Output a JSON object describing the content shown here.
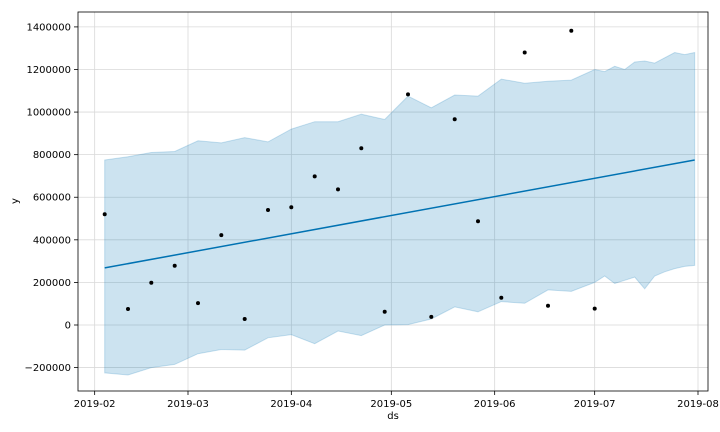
{
  "chart_data": {
    "type": "line",
    "title": "",
    "xlabel": "ds",
    "ylabel": "y",
    "grid": true,
    "x_ticks": [
      "2019-02",
      "2019-03",
      "2019-04",
      "2019-05",
      "2019-06",
      "2019-07",
      "2019-08"
    ],
    "y_ticks": [
      -200000,
      0,
      200000,
      400000,
      600000,
      800000,
      1000000,
      1200000,
      1400000
    ],
    "y_tick_labels": [
      "−200000",
      "0",
      "200000",
      "400000",
      "600000",
      "800000",
      "1000000",
      "1200000",
      "1400000"
    ],
    "xlim": [
      "2019-01-27",
      "2019-08-04"
    ],
    "ylim": [
      -310000,
      1470000
    ],
    "colors": {
      "forecast": "#0072B2",
      "band": "#0072B2",
      "points": "#000000"
    },
    "series": [
      {
        "kind": "observed",
        "x": [
          "2019-02-04",
          "2019-02-11",
          "2019-02-18",
          "2019-02-25",
          "2019-03-04",
          "2019-03-11",
          "2019-03-18",
          "2019-03-25",
          "2019-04-01",
          "2019-04-08",
          "2019-04-15",
          "2019-04-22",
          "2019-04-29",
          "2019-05-06",
          "2019-05-13",
          "2019-05-20",
          "2019-05-27",
          "2019-06-03",
          "2019-06-10",
          "2019-06-17",
          "2019-06-24",
          "2019-07-01"
        ],
        "y": [
          520000,
          75000,
          198000,
          278000,
          103000,
          422000,
          28000,
          540000,
          553000,
          698000,
          637000,
          830000,
          62000,
          1083000,
          38000,
          966000,
          487000,
          128000,
          1280000,
          90000,
          1382000,
          77000
        ]
      },
      {
        "kind": "trend",
        "x": [
          "2019-02-04",
          "2019-07-31"
        ],
        "y": [
          268000,
          775000
        ]
      },
      {
        "kind": "upper",
        "x": [
          "2019-02-04",
          "2019-02-11",
          "2019-02-18",
          "2019-02-25",
          "2019-03-04",
          "2019-03-11",
          "2019-03-18",
          "2019-03-25",
          "2019-04-01",
          "2019-04-08",
          "2019-04-15",
          "2019-04-22",
          "2019-04-29",
          "2019-05-06",
          "2019-05-13",
          "2019-05-20",
          "2019-05-27",
          "2019-06-03",
          "2019-06-10",
          "2019-06-17",
          "2019-06-24",
          "2019-07-01",
          "2019-07-04",
          "2019-07-07",
          "2019-07-10",
          "2019-07-13",
          "2019-07-16",
          "2019-07-19",
          "2019-07-22",
          "2019-07-25",
          "2019-07-28",
          "2019-07-31"
        ],
        "y": [
          775000,
          790000,
          810000,
          815000,
          865000,
          855000,
          880000,
          860000,
          920000,
          955000,
          955000,
          990000,
          965000,
          1075000,
          1020000,
          1080000,
          1075000,
          1155000,
          1135000,
          1145000,
          1150000,
          1200000,
          1190000,
          1215000,
          1200000,
          1235000,
          1240000,
          1230000,
          1255000,
          1280000,
          1270000,
          1280000
        ]
      },
      {
        "kind": "lower",
        "x": [
          "2019-02-04",
          "2019-02-11",
          "2019-02-18",
          "2019-02-25",
          "2019-03-04",
          "2019-03-11",
          "2019-03-18",
          "2019-03-25",
          "2019-04-01",
          "2019-04-08",
          "2019-04-15",
          "2019-04-22",
          "2019-04-29",
          "2019-05-06",
          "2019-05-13",
          "2019-05-20",
          "2019-05-27",
          "2019-06-03",
          "2019-06-10",
          "2019-06-17",
          "2019-06-24",
          "2019-07-01",
          "2019-07-04",
          "2019-07-07",
          "2019-07-10",
          "2019-07-13",
          "2019-07-16",
          "2019-07-19",
          "2019-07-22",
          "2019-07-25",
          "2019-07-28",
          "2019-07-31"
        ],
        "y": [
          -225000,
          -235000,
          -200000,
          -185000,
          -135000,
          -115000,
          -118000,
          -60000,
          -45000,
          -88000,
          -28000,
          -50000,
          0,
          2000,
          28000,
          85000,
          62000,
          110000,
          102000,
          165000,
          158000,
          200000,
          230000,
          195000,
          210000,
          225000,
          170000,
          230000,
          250000,
          265000,
          275000,
          280000
        ]
      }
    ]
  }
}
